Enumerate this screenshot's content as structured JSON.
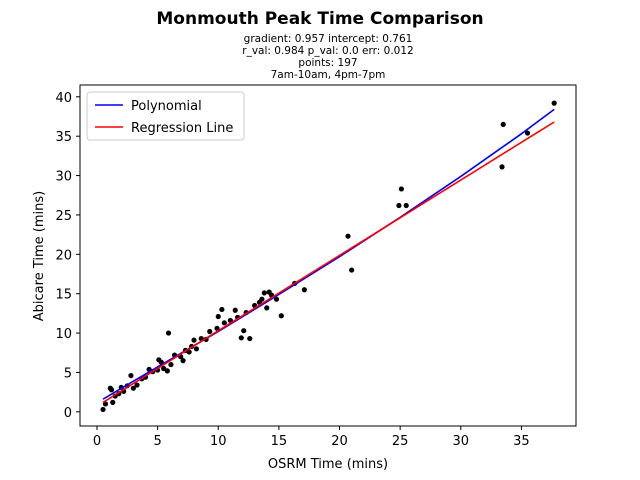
{
  "chart_data": {
    "type": "scatter",
    "title": "Monmouth Peak Time Comparison",
    "subtitle_lines": [
      "gradient: 0.957  intercept: 0.761",
      "r_val: 0.984  p_val: 0.0  err: 0.012",
      "points: 197",
      "7am-10am, 4pm-7pm"
    ],
    "xlabel": "OSRM Time (mins)",
    "ylabel": "Abicare Time (mins)",
    "xlim": [
      -1.4,
      39.5
    ],
    "ylim": [
      -1.8,
      41.5
    ],
    "xticks": [
      0,
      5,
      10,
      15,
      20,
      25,
      30,
      35
    ],
    "yticks": [
      0,
      5,
      10,
      15,
      20,
      25,
      30,
      35,
      40
    ],
    "grid": false,
    "legend": {
      "placement": "upper-left",
      "entries": [
        {
          "label": "Polynomial",
          "color": "#0000ff"
        },
        {
          "label": "Regression Line",
          "color": "#ff0000"
        }
      ]
    },
    "series": [
      {
        "name": "Polynomial",
        "kind": "line",
        "color": "#0000ff",
        "x": [
          0.5,
          5,
          10,
          15,
          20,
          25,
          30,
          35,
          37.7
        ],
        "y": [
          1.6,
          5.7,
          10.2,
          14.9,
          19.7,
          24.7,
          29.9,
          35.3,
          38.4
        ]
      },
      {
        "name": "Regression Line",
        "kind": "line",
        "color": "#ff0000",
        "x": [
          0.5,
          37.7
        ],
        "y": [
          1.2,
          36.8
        ]
      },
      {
        "name": "",
        "kind": "scatter",
        "color": "#000000",
        "points": [
          [
            0.5,
            0.3
          ],
          [
            0.7,
            1.0
          ],
          [
            1.1,
            3.0
          ],
          [
            1.2,
            2.8
          ],
          [
            1.3,
            1.2
          ],
          [
            1.5,
            2.0
          ],
          [
            1.8,
            2.3
          ],
          [
            2.0,
            3.1
          ],
          [
            2.2,
            2.6
          ],
          [
            2.5,
            3.3
          ],
          [
            2.8,
            4.6
          ],
          [
            3.0,
            3.0
          ],
          [
            3.3,
            3.4
          ],
          [
            3.7,
            4.2
          ],
          [
            4.0,
            4.4
          ],
          [
            4.3,
            5.4
          ],
          [
            4.6,
            5.1
          ],
          [
            5.0,
            5.3
          ],
          [
            5.1,
            6.6
          ],
          [
            5.3,
            6.3
          ],
          [
            5.5,
            5.5
          ],
          [
            5.8,
            5.2
          ],
          [
            5.9,
            10.0
          ],
          [
            6.1,
            6.0
          ],
          [
            6.4,
            7.2
          ],
          [
            6.9,
            7.0
          ],
          [
            7.1,
            6.5
          ],
          [
            7.3,
            7.8
          ],
          [
            7.6,
            7.6
          ],
          [
            7.8,
            8.3
          ],
          [
            8.0,
            9.1
          ],
          [
            8.2,
            8.0
          ],
          [
            8.6,
            9.3
          ],
          [
            9.0,
            9.2
          ],
          [
            9.3,
            10.2
          ],
          [
            9.9,
            10.6
          ],
          [
            10.0,
            12.1
          ],
          [
            10.3,
            13.0
          ],
          [
            10.5,
            11.3
          ],
          [
            11.0,
            11.6
          ],
          [
            11.4,
            12.9
          ],
          [
            11.6,
            12.0
          ],
          [
            11.9,
            9.4
          ],
          [
            12.1,
            10.3
          ],
          [
            12.3,
            12.6
          ],
          [
            12.6,
            9.3
          ],
          [
            13.0,
            13.5
          ],
          [
            13.4,
            13.9
          ],
          [
            13.6,
            14.3
          ],
          [
            13.8,
            15.1
          ],
          [
            14.0,
            13.2
          ],
          [
            14.2,
            15.2
          ],
          [
            14.4,
            14.8
          ],
          [
            14.8,
            14.3
          ],
          [
            15.2,
            12.2
          ],
          [
            16.3,
            16.3
          ],
          [
            17.1,
            15.5
          ],
          [
            20.7,
            22.3
          ],
          [
            21.0,
            18.0
          ],
          [
            24.9,
            26.2
          ],
          [
            25.1,
            28.3
          ],
          [
            25.5,
            26.2
          ],
          [
            33.4,
            31.1
          ],
          [
            33.5,
            36.5
          ],
          [
            35.5,
            35.4
          ],
          [
            37.7,
            39.2
          ]
        ]
      }
    ]
  }
}
